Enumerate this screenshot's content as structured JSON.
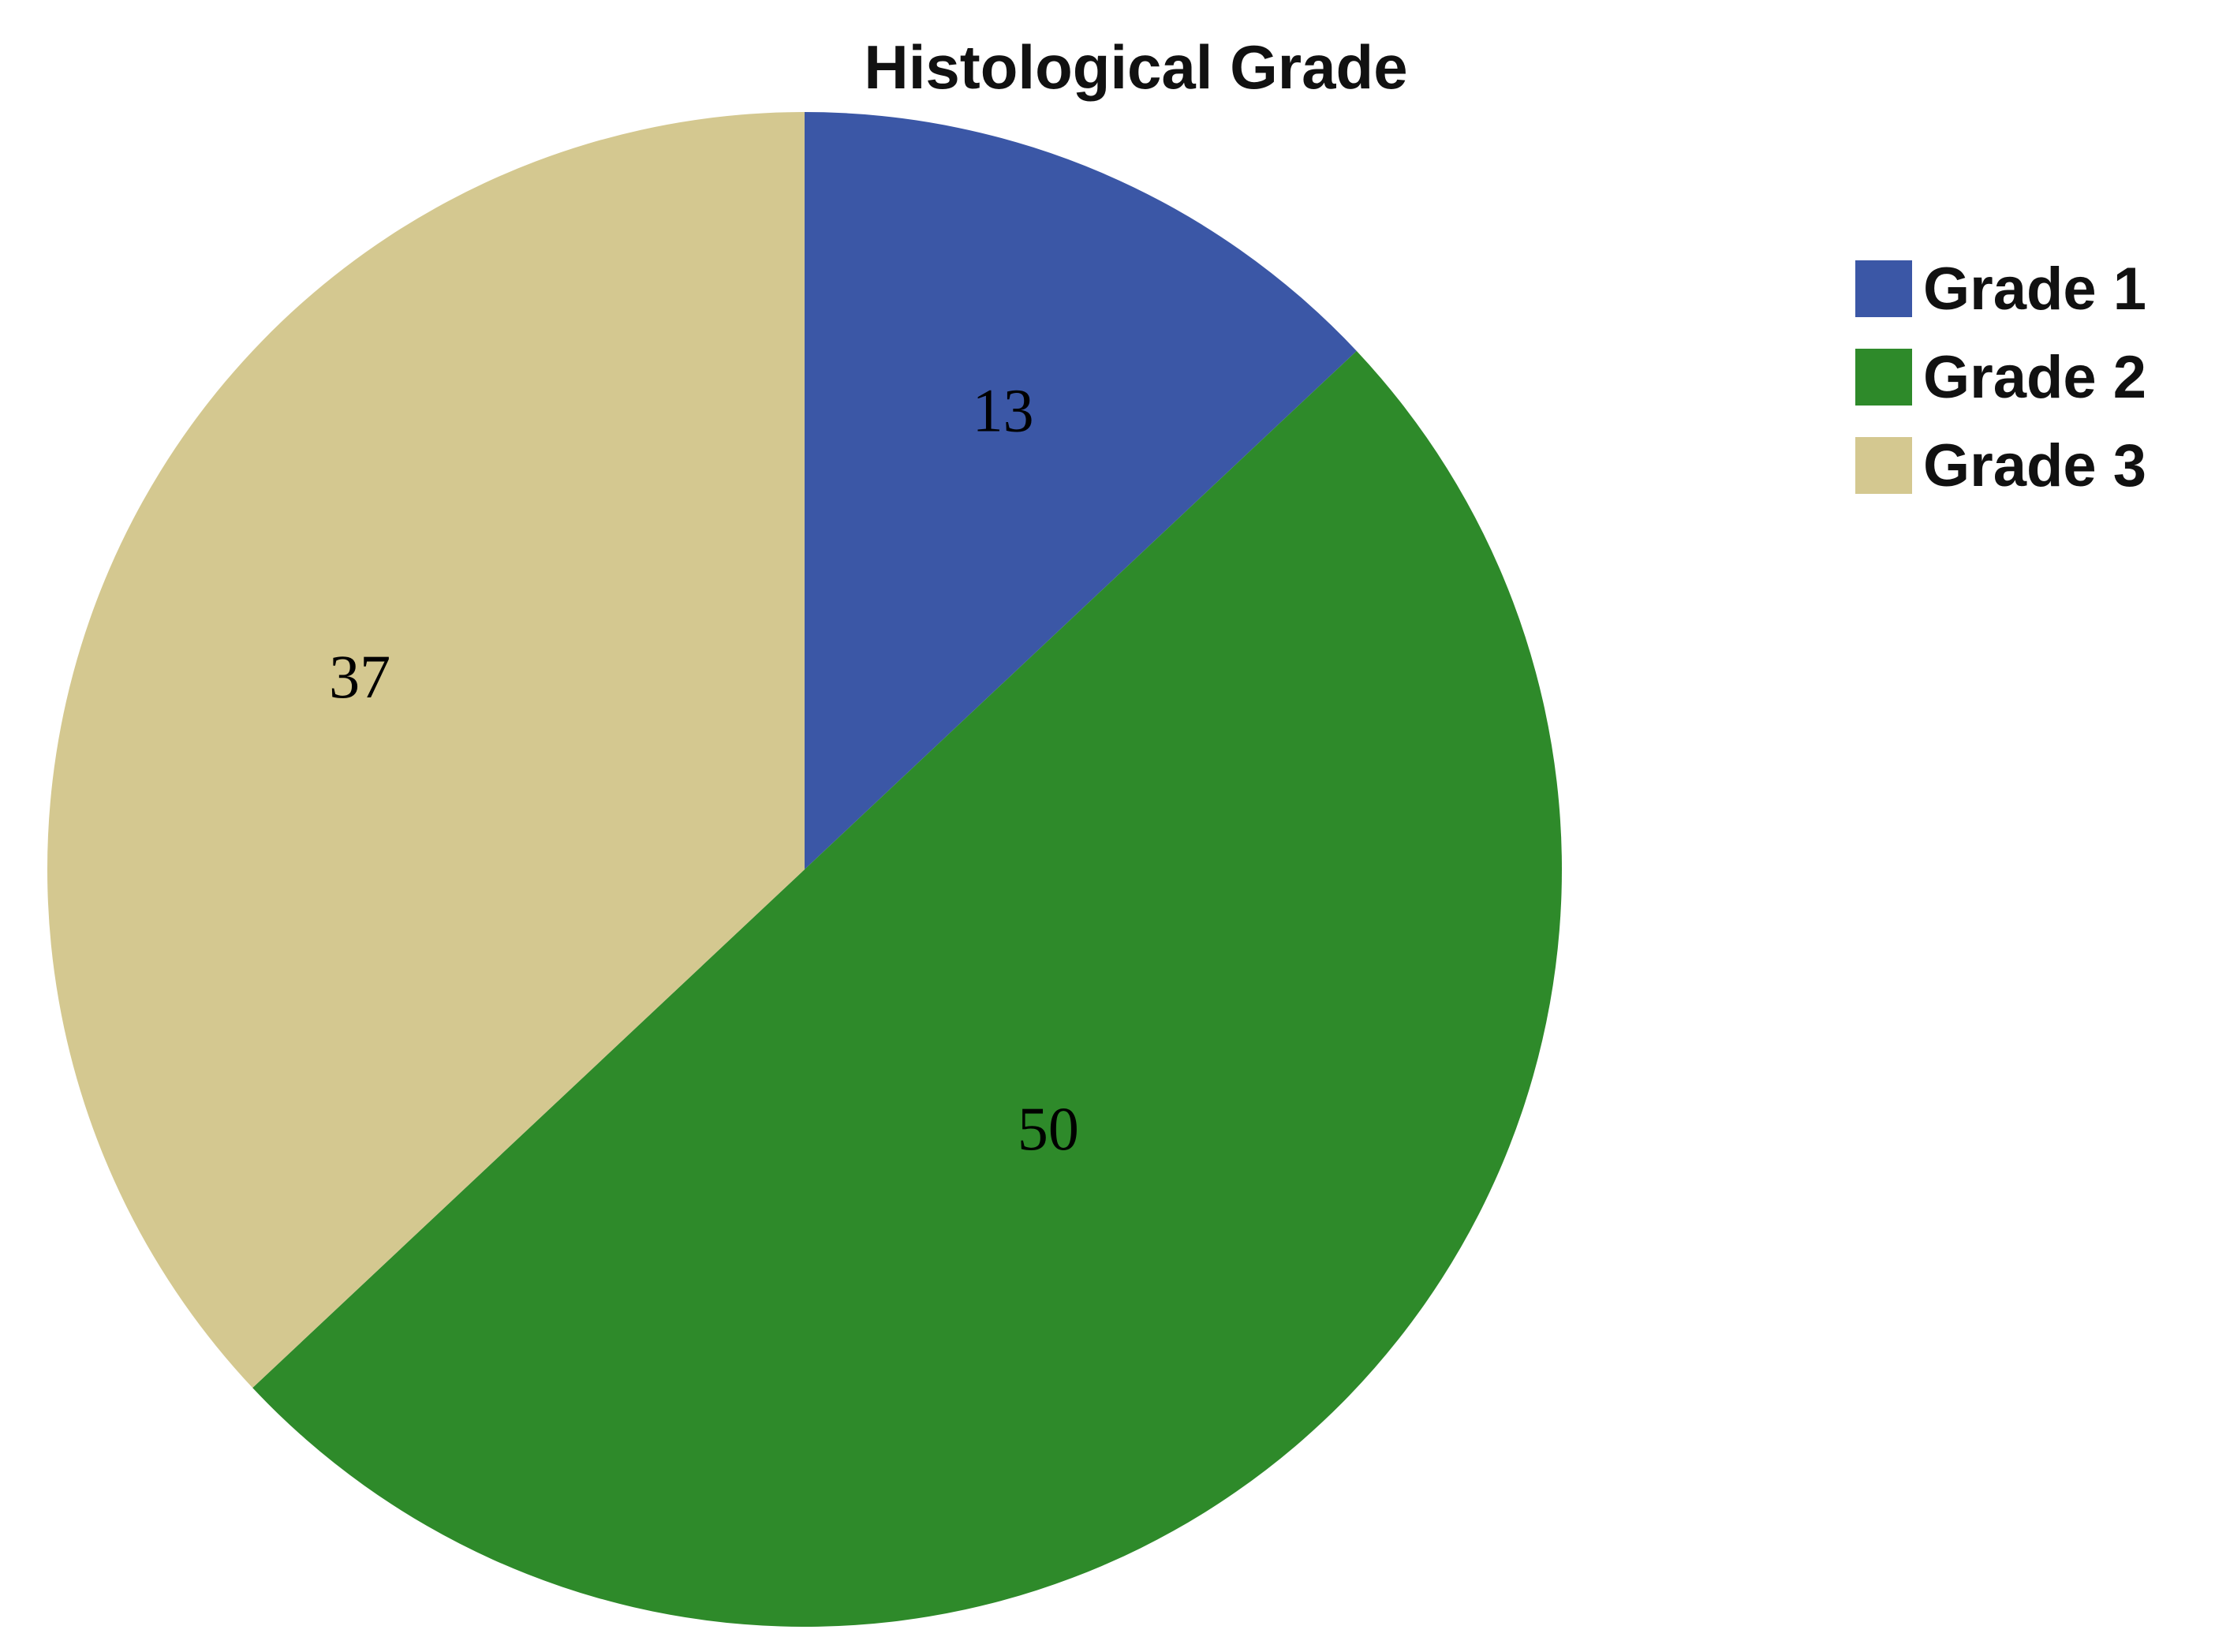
{
  "chart_data": {
    "type": "pie",
    "title": "Histological Grade",
    "categories": [
      "Grade 1",
      "Grade 2",
      "Grade 3"
    ],
    "values": [
      13,
      50,
      37
    ],
    "data_labels": [
      "13",
      "50",
      "37"
    ],
    "colors": [
      "#3b57a6",
      "#2e8a2a",
      "#d4c890"
    ],
    "start_angle_deg": 0,
    "direction": "clockwise",
    "legend_position": "right",
    "legend": [
      {
        "label": "Grade 1",
        "color": "#3b57a6"
      },
      {
        "label": "Grade 2",
        "color": "#2e8a2a"
      },
      {
        "label": "Grade 3",
        "color": "#d4c890"
      }
    ]
  }
}
